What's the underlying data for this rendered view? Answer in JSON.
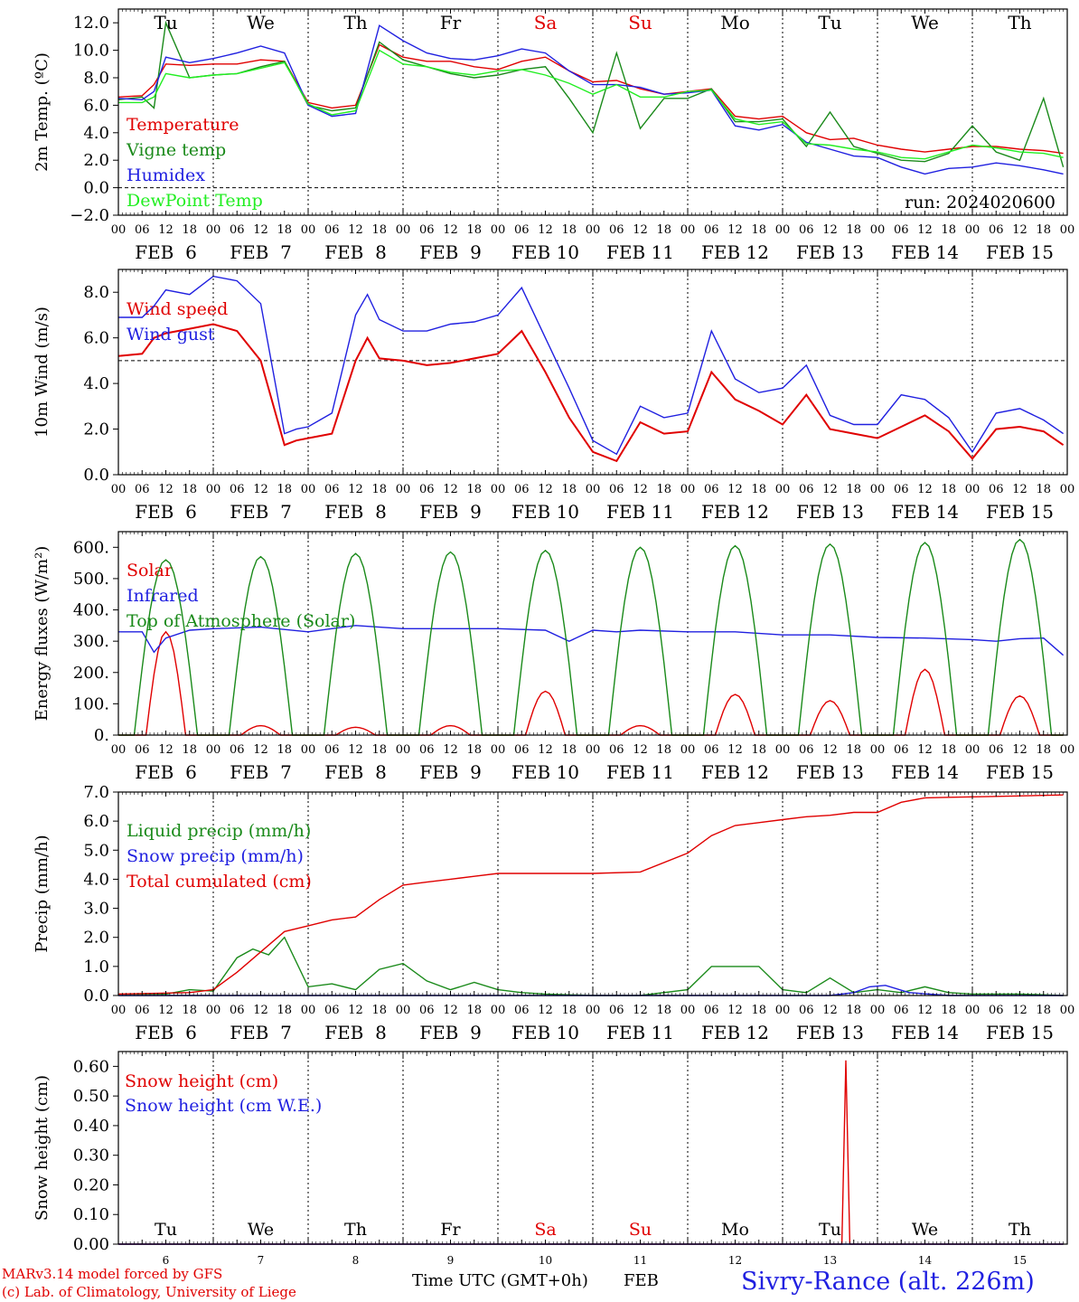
{
  "footer": {
    "model_line": "MARv3.14 model forced by GFS",
    "lab_line": "(c) Lab. of Climatology, University of Liege",
    "x_title": "Time UTC (GMT+0h)",
    "month_label": "FEB",
    "station": "Sivry-Rance (alt. 226m)"
  },
  "chart_data": [
    {
      "type": "line",
      "ylabel": "2m Temp. (ºC)",
      "ylim": [
        -2,
        13
      ],
      "yticks": [
        "−2.0",
        "0.0",
        "2.0",
        "4.0",
        "6.0",
        "8.0",
        "10.0",
        "12.0"
      ],
      "ref_line": 0,
      "run_label": "run: 2024020600",
      "day_names": [
        "Tu",
        "We",
        "Th",
        "Fr",
        "Sa",
        "Su",
        "Mo",
        "Tu",
        "We",
        "Th"
      ],
      "day_name_colors": [
        "#000000",
        "#000000",
        "#000000",
        "#000000",
        "#e00000",
        "#e00000",
        "#000000",
        "#000000",
        "#000000",
        "#000000"
      ],
      "x_unit": "hours since FEB 6 00 UTC",
      "series": [
        {
          "name": "Temperature",
          "color": "#e00000",
          "x": [
            0,
            6,
            9,
            12,
            18,
            24,
            30,
            36,
            42,
            48,
            54,
            60,
            66,
            72,
            78,
            84,
            90,
            96,
            102,
            108,
            114,
            120,
            126,
            132,
            138,
            144,
            150,
            156,
            162,
            168,
            174,
            180,
            186,
            192,
            198,
            204,
            210,
            216,
            222,
            228,
            234,
            239
          ],
          "values": [
            6.6,
            6.7,
            7.5,
            9.0,
            8.9,
            9.0,
            9.0,
            9.3,
            9.2,
            6.2,
            5.8,
            6.0,
            10.4,
            9.5,
            9.2,
            9.2,
            8.8,
            8.6,
            9.2,
            9.5,
            8.5,
            7.7,
            7.8,
            7.2,
            6.8,
            7.0,
            7.2,
            5.2,
            5.0,
            5.2,
            4.0,
            3.5,
            3.6,
            3.1,
            2.8,
            2.6,
            2.8,
            3.0,
            3.0,
            2.8,
            2.7,
            2.5
          ]
        },
        {
          "name": "Vigne temp",
          "color": "#1a8a1a",
          "x": [
            0,
            6,
            9,
            12,
            18,
            24,
            30,
            36,
            42,
            48,
            54,
            60,
            66,
            72,
            78,
            84,
            90,
            96,
            102,
            108,
            114,
            120,
            126,
            132,
            138,
            144,
            150,
            156,
            162,
            168,
            174,
            180,
            186,
            192,
            198,
            204,
            210,
            216,
            222,
            228,
            234,
            239
          ],
          "values": [
            6.4,
            6.6,
            5.8,
            12.0,
            8.0,
            8.2,
            8.3,
            8.8,
            9.2,
            6.0,
            5.6,
            5.8,
            10.6,
            9.3,
            8.8,
            8.3,
            8.0,
            8.2,
            8.6,
            8.8,
            6.5,
            4.0,
            9.8,
            4.3,
            6.5,
            6.5,
            7.2,
            4.8,
            4.8,
            5.0,
            3.0,
            5.5,
            3.0,
            2.5,
            2.0,
            1.9,
            2.5,
            4.5,
            2.6,
            2.0,
            6.5,
            1.5
          ]
        },
        {
          "name": "Humidex",
          "color": "#2020e0",
          "x": [
            0,
            6,
            9,
            12,
            18,
            24,
            30,
            36,
            42,
            48,
            54,
            60,
            66,
            72,
            78,
            84,
            90,
            96,
            102,
            108,
            114,
            120,
            126,
            132,
            138,
            144,
            150,
            156,
            162,
            168,
            174,
            180,
            186,
            192,
            198,
            204,
            210,
            216,
            222,
            228,
            234,
            239
          ],
          "values": [
            6.5,
            6.4,
            7.0,
            9.5,
            9.1,
            9.4,
            9.8,
            10.3,
            9.8,
            6.0,
            5.2,
            5.4,
            11.8,
            10.7,
            9.8,
            9.4,
            9.3,
            9.6,
            10.1,
            9.8,
            8.5,
            7.5,
            7.5,
            7.3,
            6.8,
            6.9,
            7.1,
            4.5,
            4.2,
            4.6,
            3.3,
            2.8,
            2.3,
            2.2,
            1.5,
            1.0,
            1.4,
            1.5,
            1.8,
            1.6,
            1.3,
            1.0
          ]
        },
        {
          "name": "DewPoint Temp",
          "color": "#22ee22",
          "x": [
            0,
            6,
            9,
            12,
            18,
            24,
            30,
            36,
            42,
            48,
            54,
            60,
            66,
            72,
            78,
            84,
            90,
            96,
            102,
            108,
            114,
            120,
            126,
            132,
            138,
            144,
            150,
            156,
            162,
            168,
            174,
            180,
            186,
            192,
            198,
            204,
            210,
            216,
            222,
            228,
            234,
            239
          ],
          "values": [
            6.2,
            6.2,
            6.6,
            8.3,
            8.0,
            8.2,
            8.3,
            8.7,
            9.1,
            6.1,
            5.3,
            5.6,
            10.0,
            9.0,
            8.8,
            8.4,
            8.2,
            8.5,
            8.6,
            8.2,
            7.6,
            6.8,
            7.5,
            6.6,
            6.6,
            7.0,
            7.1,
            5.0,
            4.6,
            4.8,
            3.2,
            3.1,
            2.8,
            2.6,
            2.2,
            2.1,
            2.6,
            3.1,
            2.9,
            2.6,
            2.5,
            2.2
          ]
        }
      ]
    },
    {
      "type": "line",
      "ylabel": "10m Wind (m/s)",
      "ylim": [
        0,
        9
      ],
      "yticks": [
        "0.0",
        "2.0",
        "4.0",
        "6.0",
        "8.0"
      ],
      "ref_line": 5,
      "series": [
        {
          "name": "Wind speed",
          "color": "#e00000",
          "x": [
            0,
            6,
            9,
            12,
            18,
            24,
            30,
            36,
            42,
            45,
            48,
            54,
            60,
            63,
            66,
            72,
            78,
            84,
            90,
            96,
            102,
            108,
            114,
            120,
            126,
            132,
            138,
            144,
            150,
            156,
            162,
            168,
            174,
            180,
            186,
            192,
            198,
            204,
            210,
            216,
            222,
            228,
            234,
            239
          ],
          "values": [
            5.2,
            5.3,
            6.0,
            6.2,
            6.4,
            6.6,
            6.3,
            5.0,
            1.3,
            1.5,
            1.6,
            1.8,
            5.0,
            6.0,
            5.1,
            5.0,
            4.8,
            4.9,
            5.1,
            5.3,
            6.3,
            4.5,
            2.5,
            1.0,
            0.6,
            2.3,
            1.8,
            1.9,
            4.5,
            3.3,
            2.8,
            2.2,
            3.5,
            2.0,
            1.8,
            1.6,
            2.1,
            2.6,
            1.9,
            0.7,
            2.0,
            2.1,
            1.9,
            1.3
          ]
        },
        {
          "name": "Wind gust",
          "color": "#2020e0",
          "x": [
            0,
            6,
            9,
            12,
            18,
            24,
            30,
            36,
            42,
            45,
            48,
            54,
            60,
            63,
            66,
            72,
            78,
            84,
            90,
            96,
            102,
            108,
            114,
            120,
            126,
            132,
            138,
            144,
            150,
            156,
            162,
            168,
            174,
            180,
            186,
            192,
            198,
            204,
            210,
            216,
            222,
            228,
            234,
            239
          ],
          "values": [
            6.9,
            6.9,
            7.4,
            8.1,
            7.9,
            8.7,
            8.5,
            7.5,
            1.8,
            2.0,
            2.1,
            2.7,
            7.0,
            7.9,
            6.8,
            6.3,
            6.3,
            6.6,
            6.7,
            7.0,
            8.2,
            6.0,
            3.8,
            1.5,
            0.9,
            3.0,
            2.5,
            2.7,
            6.3,
            4.2,
            3.6,
            3.8,
            4.8,
            2.6,
            2.2,
            2.2,
            3.5,
            3.3,
            2.5,
            1.0,
            2.7,
            2.9,
            2.4,
            1.8
          ]
        }
      ]
    },
    {
      "type": "line",
      "ylabel": "Energy fluxes (W/m²)",
      "ylim": [
        0,
        650
      ],
      "yticks": [
        "0.",
        "100.",
        "200.",
        "300.",
        "400.",
        "500.",
        "600."
      ],
      "series": [
        {
          "name": "Solar",
          "color": "#e00000",
          "daily_peak_hour": 12,
          "daily_peaks": [
            330,
            30,
            25,
            30,
            140,
            30,
            130,
            110,
            210,
            125
          ]
        },
        {
          "name": "Infrared",
          "color": "#2020e0",
          "x": [
            0,
            6,
            9,
            12,
            18,
            24,
            36,
            48,
            60,
            72,
            84,
            96,
            108,
            114,
            120,
            126,
            132,
            144,
            156,
            168,
            180,
            192,
            204,
            216,
            222,
            228,
            234,
            239
          ],
          "values": [
            330,
            330,
            265,
            310,
            335,
            340,
            345,
            330,
            350,
            340,
            340,
            340,
            335,
            300,
            335,
            330,
            335,
            330,
            330,
            320,
            320,
            312,
            310,
            305,
            300,
            308,
            310,
            255
          ]
        },
        {
          "name": "Top of Atmosphere (Solar)",
          "color": "#1a8a1a",
          "daily_peak_hour": 12,
          "daily_peaks": [
            560,
            570,
            580,
            585,
            590,
            600,
            605,
            610,
            615,
            625
          ]
        }
      ]
    },
    {
      "type": "line",
      "ylabel": "Precip (mm/h)",
      "ylim": [
        0,
        7.0
      ],
      "yticks": [
        "0.0",
        "1.0",
        "2.0",
        "3.0",
        "4.0",
        "5.0",
        "6.0",
        "7.0"
      ],
      "series": [
        {
          "name": "Liquid precip (mm/h)",
          "color": "#1a8a1a",
          "x": [
            0,
            12,
            18,
            24,
            30,
            34,
            38,
            42,
            48,
            54,
            60,
            66,
            72,
            78,
            84,
            90,
            96,
            102,
            108,
            120,
            132,
            144,
            150,
            156,
            162,
            168,
            174,
            180,
            186,
            192,
            198,
            204,
            210,
            216,
            228,
            239
          ],
          "values": [
            0.05,
            0.05,
            0.2,
            0.15,
            1.3,
            1.6,
            1.4,
            2.0,
            0.3,
            0.4,
            0.2,
            0.9,
            1.1,
            0.5,
            0.2,
            0.45,
            0.2,
            0.1,
            0.05,
            0.0,
            0.0,
            0.2,
            1.0,
            1.0,
            1.0,
            0.2,
            0.1,
            0.6,
            0.1,
            0.2,
            0.1,
            0.3,
            0.1,
            0.05,
            0.05,
            0.0
          ]
        },
        {
          "name": "Snow precip (mm/h)",
          "color": "#2020e0",
          "x": [
            0,
            180,
            186,
            190,
            194,
            200,
            210,
            239
          ],
          "values": [
            0,
            0,
            0.1,
            0.3,
            0.35,
            0.1,
            0,
            0
          ]
        },
        {
          "name": "Total cumulated (cm)",
          "color": "#e00000",
          "x": [
            0,
            18,
            24,
            30,
            36,
            42,
            48,
            54,
            60,
            66,
            72,
            78,
            84,
            90,
            96,
            108,
            120,
            132,
            144,
            150,
            156,
            162,
            168,
            174,
            180,
            186,
            192,
            198,
            204,
            210,
            222,
            239
          ],
          "values": [
            0.05,
            0.1,
            0.2,
            0.8,
            1.5,
            2.2,
            2.4,
            2.6,
            2.7,
            3.3,
            3.8,
            3.9,
            4.0,
            4.1,
            4.2,
            4.2,
            4.2,
            4.25,
            4.9,
            5.5,
            5.85,
            5.95,
            6.05,
            6.15,
            6.2,
            6.3,
            6.3,
            6.65,
            6.8,
            6.82,
            6.85,
            6.9
          ]
        }
      ]
    },
    {
      "type": "line",
      "ylabel": "Snow height (cm)",
      "ylim": [
        0,
        0.65
      ],
      "yticks": [
        "0.00",
        "0.10",
        "0.20",
        "0.30",
        "0.40",
        "0.50",
        "0.60",
        ""
      ],
      "day_names": [
        "Tu",
        "We",
        "Th",
        "Fr",
        "Sa",
        "Su",
        "Mo",
        "Tu",
        "We",
        "Th"
      ],
      "day_name_colors": [
        "#000000",
        "#000000",
        "#000000",
        "#000000",
        "#e00000",
        "#e00000",
        "#000000",
        "#000000",
        "#000000",
        "#000000"
      ],
      "day_numbers": [
        "6",
        "7",
        "8",
        "9",
        "10",
        "11",
        "12",
        "13",
        "14",
        "15"
      ],
      "series": [
        {
          "name": "Snow height (cm)",
          "color": "#e00000",
          "x": [
            0,
            183,
            184,
            185,
            239
          ],
          "values": [
            0,
            0,
            0.62,
            0,
            0
          ]
        },
        {
          "name": "Snow height (cm W.E.)",
          "color": "#2020e0",
          "x": [
            0,
            239
          ],
          "values": [
            0,
            0
          ]
        }
      ]
    }
  ],
  "axis": {
    "hour_ticks": [
      "00",
      "06",
      "12",
      "18"
    ],
    "final_tick": "00",
    "day_labels": [
      "FEB  6",
      "FEB  7",
      "FEB  8",
      "FEB  9",
      "FEB 10",
      "FEB 11",
      "FEB 12",
      "FEB 13",
      "FEB 14",
      "FEB 15"
    ]
  }
}
